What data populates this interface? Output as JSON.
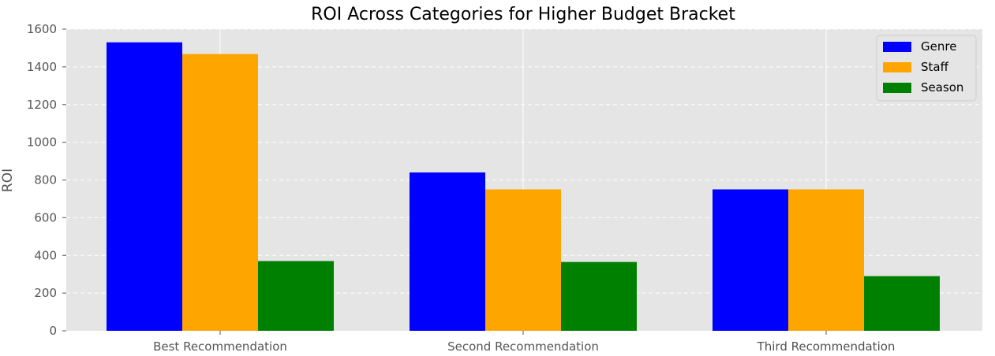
{
  "chart_data": {
    "type": "bar",
    "title": "ROI Across Categories for Higher Budget Bracket",
    "xlabel": "",
    "ylabel": "ROI",
    "categories": [
      "Best Recommendation",
      "Second Recommendation",
      "Third Recommendation"
    ],
    "series": [
      {
        "name": "Genre",
        "color": "#0000ff",
        "values": [
          1530,
          840,
          750
        ]
      },
      {
        "name": "Staff",
        "color": "#ffa500",
        "values": [
          1468,
          750,
          750
        ]
      },
      {
        "name": "Season",
        "color": "#008000",
        "values": [
          370,
          365,
          290
        ]
      }
    ],
    "ylim": [
      0,
      1600
    ],
    "yticks": [
      0,
      200,
      400,
      600,
      800,
      1000,
      1200,
      1400,
      1600
    ],
    "grid": true,
    "legend_position": "top-right",
    "style": {
      "plot_background": "#e5e5e5",
      "grid_color": "#ffffff"
    }
  }
}
